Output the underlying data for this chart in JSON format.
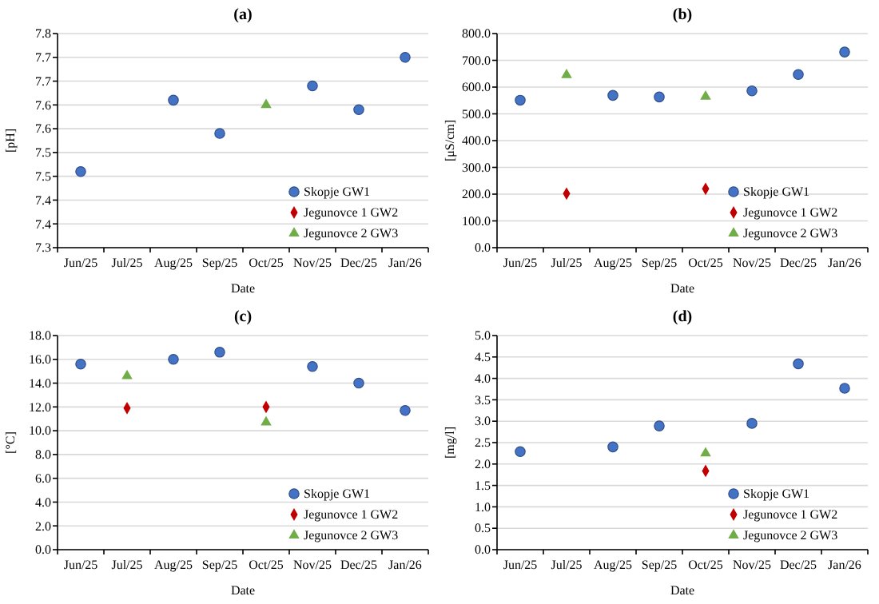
{
  "chart_data": [
    {
      "type": "scatter",
      "title": "(a)",
      "xlabel": "Date",
      "ylabel": "[pH]",
      "categories": [
        "Jun/25",
        "Jul/25",
        "Aug/25",
        "Sep/25",
        "Oct/25",
        "Nov/25",
        "Dec/25",
        "Jan/26"
      ],
      "ylim": [
        7.3,
        7.75
      ],
      "yticks": [
        7.3,
        {
          "value": 7.35,
          "label": "7.4"
        },
        7.4,
        {
          "value": 7.45,
          "label": "7.5"
        },
        7.5,
        {
          "value": 7.55,
          "label": "7.6"
        },
        7.6,
        {
          "value": 7.65,
          "label": "7.7"
        },
        7.7,
        {
          "value": 7.75,
          "label": "7.8"
        }
      ],
      "grid": "y",
      "legend": "bottom right",
      "series": [
        {
          "name": "Skopje GW1",
          "color": "#4472c4",
          "marker": "circle",
          "values": [
            7.46,
            null,
            7.61,
            7.54,
            null,
            7.64,
            7.59,
            7.7
          ]
        },
        {
          "name": "Jegunovce 1 GW2",
          "color": "#c00000",
          "marker": "diamond",
          "values": [
            null,
            null,
            null,
            null,
            null,
            null,
            null,
            null
          ]
        },
        {
          "name": "Jegunovce 2 GW3",
          "color": "#70ad47",
          "marker": "triangle",
          "values": [
            null,
            null,
            null,
            null,
            7.6,
            null,
            null,
            null
          ]
        }
      ]
    },
    {
      "type": "scatter",
      "title": "(b)",
      "xlabel": "Date",
      "ylabel": "[μS/cm]",
      "categories": [
        "Jun/25",
        "Jul/25",
        "Aug/25",
        "Sep/25",
        "Oct/25",
        "Nov/25",
        "Dec/25",
        "Jan/26"
      ],
      "ylim": [
        0,
        800
      ],
      "yticks": [
        {
          "value": 0,
          "label": "0.0"
        },
        {
          "value": 100,
          "label": "100.0"
        },
        {
          "value": 200,
          "label": "200.0"
        },
        {
          "value": 300,
          "label": "300.0"
        },
        {
          "value": 400,
          "label": "400.0"
        },
        {
          "value": 500,
          "label": "500.0"
        },
        {
          "value": 600,
          "label": "600.0"
        },
        {
          "value": 700,
          "label": "700.0"
        },
        {
          "value": 800,
          "label": "800.0"
        }
      ],
      "grid": "y",
      "legend": "bottom right",
      "series": [
        {
          "name": "Skopje GW1",
          "color": "#4472c4",
          "marker": "circle",
          "values": [
            551,
            null,
            569,
            563,
            null,
            586,
            647,
            731
          ]
        },
        {
          "name": "Jegunovce 1 GW2",
          "color": "#c00000",
          "marker": "diamond",
          "values": [
            null,
            202,
            null,
            null,
            220,
            null,
            null,
            null
          ]
        },
        {
          "name": "Jegunovce 2 GW3",
          "color": "#70ad47",
          "marker": "triangle",
          "values": [
            null,
            645,
            null,
            null,
            565,
            null,
            null,
            null
          ]
        }
      ]
    },
    {
      "type": "scatter",
      "title": "(c)",
      "xlabel": "Date",
      "ylabel": "[°C]",
      "categories": [
        "Jun/25",
        "Jul/25",
        "Aug/25",
        "Sep/25",
        "Oct/25",
        "Nov/25",
        "Dec/25",
        "Jan/26"
      ],
      "ylim": [
        0,
        18
      ],
      "yticks": [
        {
          "value": 0,
          "label": "0.0"
        },
        {
          "value": 2,
          "label": "2.0"
        },
        {
          "value": 4,
          "label": "4.0"
        },
        {
          "value": 6,
          "label": "6.0"
        },
        {
          "value": 8,
          "label": "8.0"
        },
        {
          "value": 10,
          "label": "10.0"
        },
        {
          "value": 12,
          "label": "12.0"
        },
        {
          "value": 14,
          "label": "14.0"
        },
        {
          "value": 16,
          "label": "16.0"
        },
        {
          "value": 18,
          "label": "18.0"
        }
      ],
      "grid": "y",
      "legend": "bottom right",
      "series": [
        {
          "name": "Skopje GW1",
          "color": "#4472c4",
          "marker": "circle",
          "values": [
            15.6,
            null,
            16.0,
            16.6,
            null,
            15.4,
            14.0,
            11.7
          ]
        },
        {
          "name": "Jegunovce 1 GW2",
          "color": "#c00000",
          "marker": "diamond",
          "values": [
            null,
            11.9,
            null,
            null,
            12.0,
            null,
            null,
            null
          ]
        },
        {
          "name": "Jegunovce 2 GW3",
          "color": "#70ad47",
          "marker": "triangle",
          "values": [
            null,
            14.6,
            null,
            null,
            10.7,
            null,
            null,
            null
          ]
        }
      ]
    },
    {
      "type": "scatter",
      "title": "(d)",
      "xlabel": "Date",
      "ylabel": "[mg/l]",
      "categories": [
        "Jun/25",
        "Jul/25",
        "Aug/25",
        "Sep/25",
        "Oct/25",
        "Nov/25",
        "Dec/25",
        "Jan/26"
      ],
      "ylim": [
        0,
        5
      ],
      "yticks": [
        {
          "value": 0,
          "label": "0.0"
        },
        {
          "value": 0.5,
          "label": "0.5"
        },
        {
          "value": 1,
          "label": "1.0"
        },
        {
          "value": 1.5,
          "label": "1.5"
        },
        {
          "value": 2,
          "label": "2.0"
        },
        {
          "value": 2.5,
          "label": "2.5"
        },
        {
          "value": 3,
          "label": "3.0"
        },
        {
          "value": 3.5,
          "label": "3.5"
        },
        {
          "value": 4,
          "label": "4.0"
        },
        {
          "value": 4.5,
          "label": "4.5"
        },
        {
          "value": 5,
          "label": "5.0"
        }
      ],
      "grid": "y",
      "legend": "bottom right",
      "series": [
        {
          "name": "Skopje GW1",
          "color": "#4472c4",
          "marker": "circle",
          "values": [
            2.29,
            null,
            2.4,
            2.89,
            null,
            2.95,
            4.34,
            3.77
          ]
        },
        {
          "name": "Jegunovce 1 GW2",
          "color": "#c00000",
          "marker": "diamond",
          "values": [
            null,
            null,
            null,
            null,
            1.84,
            null,
            null,
            null
          ]
        },
        {
          "name": "Jegunovce 2 GW3",
          "color": "#70ad47",
          "marker": "triangle",
          "values": [
            null,
            null,
            null,
            null,
            2.25,
            null,
            null,
            null
          ]
        }
      ]
    }
  ]
}
